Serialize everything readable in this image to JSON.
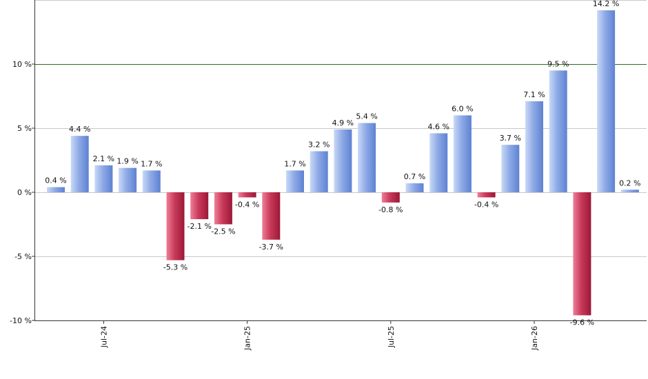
{
  "chart_data": {
    "type": "bar",
    "title": "",
    "xlabel": "",
    "ylabel": "",
    "ylim": [
      -10,
      15
    ],
    "y_ticks": [
      10,
      5,
      0,
      -5,
      -10
    ],
    "y_tick_labels": [
      "10 %",
      "5 %",
      "0 %",
      "-5 %",
      "-10 %"
    ],
    "x_tick_labels": [
      {
        "label": "Jul-24",
        "index": 2
      },
      {
        "label": "Jan-25",
        "index": 8
      },
      {
        "label": "Jul-25",
        "index": 14
      },
      {
        "label": "Jan-26",
        "index": 20
      }
    ],
    "reference_line": 10,
    "values": [
      0.4,
      4.4,
      2.1,
      1.9,
      1.7,
      -5.3,
      -2.1,
      -2.5,
      -0.4,
      -3.7,
      1.7,
      3.2,
      4.9,
      5.4,
      -0.8,
      0.7,
      4.6,
      6.0,
      -0.4,
      3.7,
      7.1,
      9.5,
      -9.6,
      14.2,
      0.2
    ],
    "labels": [
      "0.4 %",
      "4.4 %",
      "2.1 %",
      "1.9 %",
      "1.7 %",
      "-5.3 %",
      "-2.1 %",
      "-2.5 %",
      "-0.4 %",
      "-3.7 %",
      "1.7 %",
      "3.2 %",
      "4.9 %",
      "5.4 %",
      "-0.8 %",
      "0.7 %",
      "4.6 %",
      "6.0 %",
      "-0.4 %",
      "3.7 %",
      "7.1 %",
      "9.5 %",
      "-9.6 %",
      "14.2 %",
      "0.2 %"
    ],
    "grid": true,
    "colors": {
      "positive_light": "#c9d9f7",
      "positive_dark": "#5e82d2",
      "negative_light": "#ee7f97",
      "negative_dark": "#9c1838",
      "reference_line": "#2d6b1f",
      "grid": "#c8c8c8",
      "axis": "#333333"
    }
  }
}
